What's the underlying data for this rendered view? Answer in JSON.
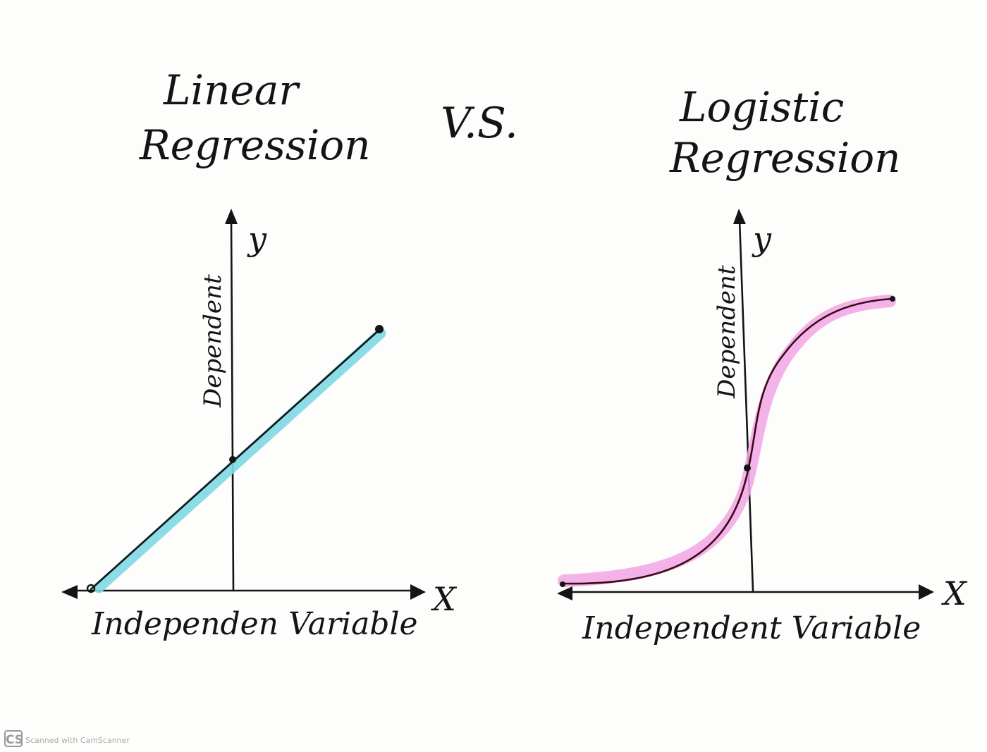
{
  "header": {
    "vs_label": "V.S."
  },
  "linear": {
    "title_line1": "Linear",
    "title_line2": "Regression",
    "y_letter": "y",
    "x_letter": "X",
    "y_label": "Dependent",
    "x_label": "Independen Variable",
    "highlight_color": "#7ed8e3"
  },
  "logistic": {
    "title_line1": "Logistic",
    "title_line2": "Regression",
    "y_letter": "y",
    "x_letter": "X",
    "y_label": "Dependent",
    "x_label": "Independent Variable",
    "highlight_color": "#f2a6e4",
    "curve_color": "#3a0a18"
  },
  "footer": {
    "badge": "CS",
    "caption": "Scanned with CamScanner"
  }
}
